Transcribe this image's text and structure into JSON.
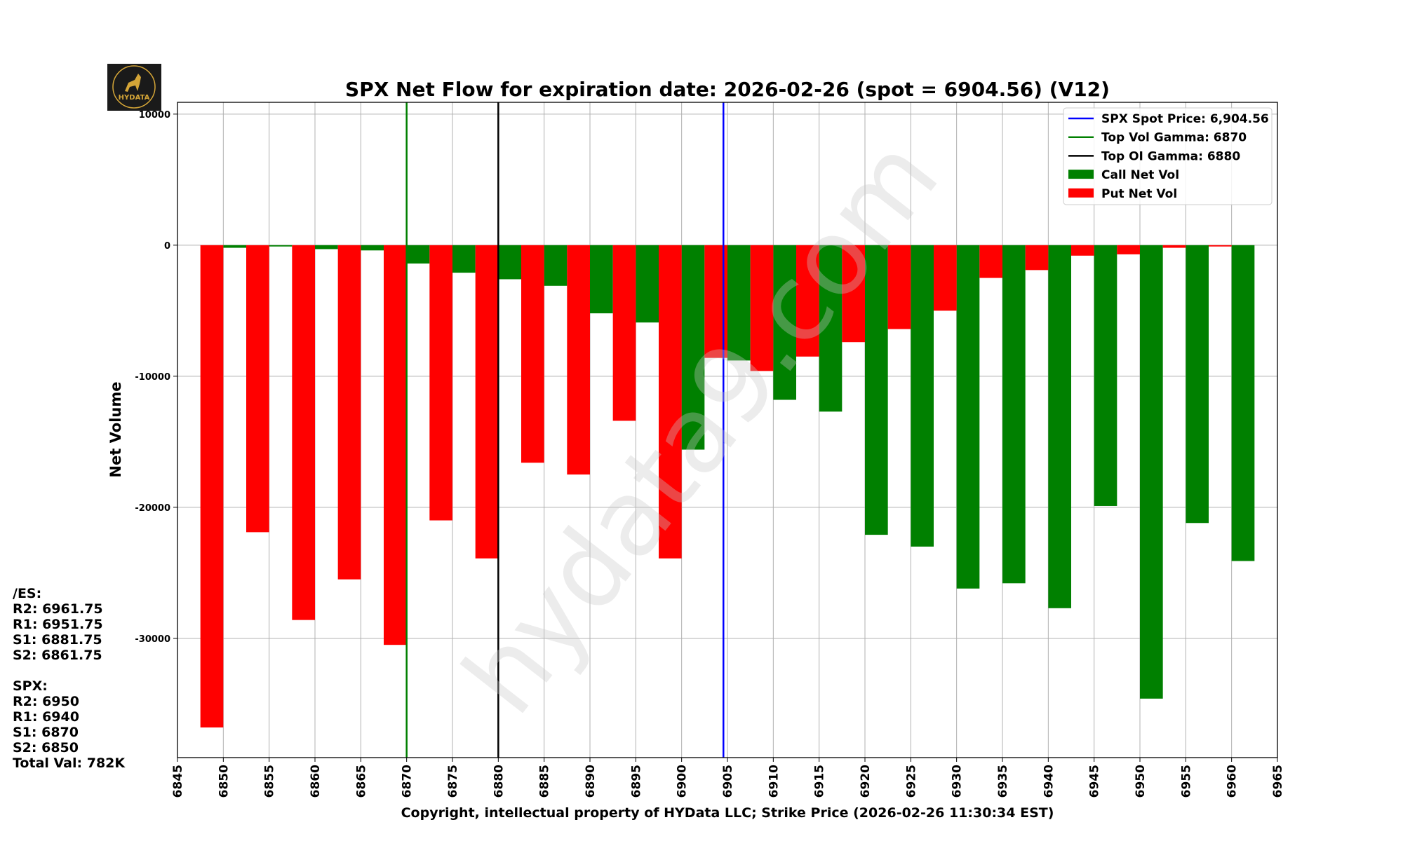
{
  "logo": {
    "text": "HYDATA",
    "bg": "#1a1a1a",
    "color": "#d4a537"
  },
  "watermark": "hydata9.com",
  "side_panel": {
    "es_title": "/ES:",
    "es_levels": [
      "R2: 6961.75",
      "R1: 6951.75",
      "S1: 6881.75",
      "S2: 6861.75"
    ],
    "spx_title": "SPX:",
    "spx_levels": [
      "R2: 6950",
      "R1: 6940",
      "S1: 6870",
      "S2: 6850"
    ],
    "total": "Total Val: 782K"
  },
  "chart_data": {
    "type": "bar",
    "title": "SPX Net Flow for expiration date: 2026-02-26 (spot = 6904.56) (V12)",
    "xlabel": "Copyright, intellectual property of HYData LLC; Strike Price (2026-02-26 11:30:34 EST)",
    "ylabel": "Net Volume",
    "xlim": [
      6845,
      6965
    ],
    "ylim": [
      -39100,
      10900
    ],
    "xticks": [
      6845,
      6850,
      6855,
      6860,
      6865,
      6870,
      6875,
      6880,
      6885,
      6890,
      6895,
      6900,
      6905,
      6910,
      6915,
      6920,
      6925,
      6930,
      6935,
      6940,
      6945,
      6950,
      6955,
      6960,
      6965
    ],
    "yticks": [
      10000,
      0,
      -10000,
      -20000,
      -30000
    ],
    "grid": true,
    "legend_placement": "top-right",
    "bar_width": 2.5,
    "strikes": [
      6850,
      6855,
      6860,
      6865,
      6870,
      6875,
      6880,
      6885,
      6890,
      6895,
      6900,
      6905,
      6910,
      6915,
      6920,
      6925,
      6930,
      6935,
      6940,
      6945,
      6950,
      6955,
      6960
    ],
    "series": [
      {
        "name": "Call Net Vol",
        "color": "#008000",
        "offset": "right",
        "values": [
          -200,
          -100,
          -300,
          -400,
          -1400,
          -2100,
          -2600,
          -3100,
          -5200,
          -5900,
          -15600,
          -8800,
          -11800,
          -12700,
          -22100,
          -23000,
          -26200,
          -25800,
          -27700,
          -19900,
          -34600,
          -21200,
          -24100
        ]
      },
      {
        "name": "Put Net Vol",
        "color": "#ff0000",
        "offset": "left",
        "values": [
          -36800,
          -21900,
          -28600,
          -25500,
          -30500,
          -21000,
          -23900,
          -16600,
          -17500,
          -13400,
          -23900,
          -8600,
          -9600,
          -8500,
          -7400,
          -6400,
          -5000,
          -2500,
          -1900,
          -800,
          -700,
          -200,
          -100
        ]
      }
    ],
    "lines": [
      {
        "name": "SPX Spot Price: 6,904.56",
        "x": 6904.56,
        "color": "#0000ff"
      },
      {
        "name": "Top Vol Gamma: 6870",
        "x": 6870,
        "color": "#008000"
      },
      {
        "name": "Top OI Gamma: 6880",
        "x": 6880,
        "color": "#000000"
      }
    ]
  }
}
